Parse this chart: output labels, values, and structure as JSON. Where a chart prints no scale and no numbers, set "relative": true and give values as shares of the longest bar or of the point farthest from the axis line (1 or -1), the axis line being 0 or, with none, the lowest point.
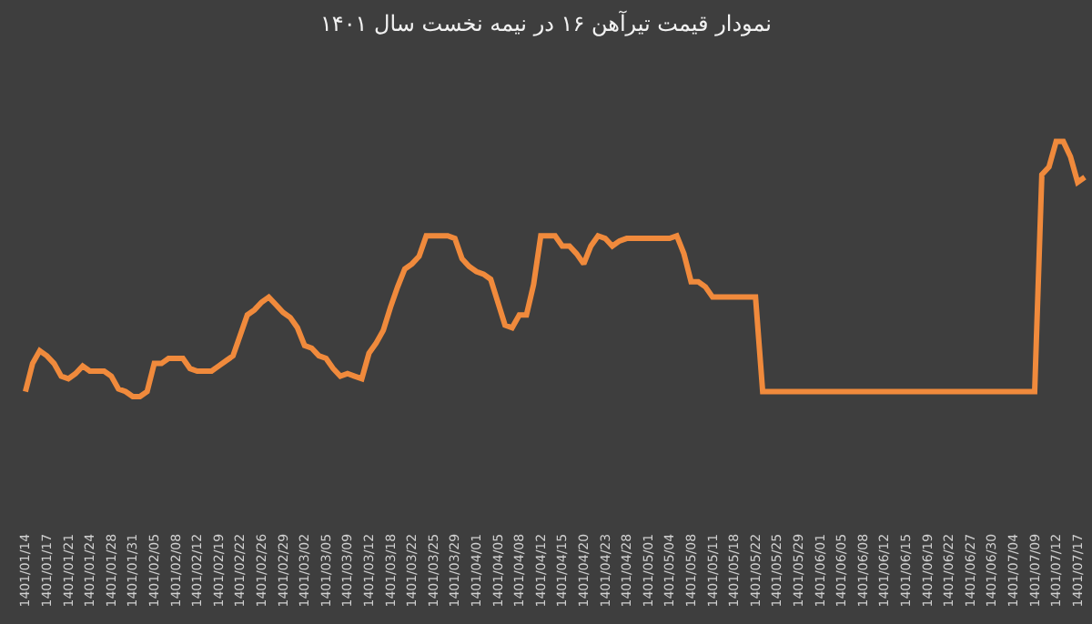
{
  "chart_data": {
    "type": "line",
    "title": "نمودار قیمت تیرآهن ۱۶ در نیمه نخست سال ۱۴۰۱",
    "relative": true,
    "marker": "none",
    "line_style": "solid",
    "categories": [
      "1401/01/14",
      null,
      null,
      "1401/01/17",
      null,
      null,
      "1401/01/21",
      null,
      null,
      "1401/01/24",
      null,
      null,
      "1401/01/28",
      null,
      null,
      "1401/01/31",
      null,
      null,
      "1401/02/05",
      null,
      null,
      "1401/02/08",
      null,
      null,
      "1401/02/12",
      null,
      null,
      "1401/02/19",
      null,
      null,
      "1401/02/22",
      null,
      null,
      "1401/02/26",
      null,
      null,
      "1401/02/29",
      null,
      null,
      "1401/03/02",
      null,
      null,
      "1401/03/05",
      null,
      null,
      "1401/03/09",
      null,
      null,
      "1401/03/12",
      null,
      null,
      "1401/03/18",
      null,
      null,
      "1401/03/22",
      null,
      null,
      "1401/03/25",
      null,
      null,
      "1401/03/29",
      null,
      null,
      "1401/04/01",
      null,
      null,
      "1401/04/05",
      null,
      null,
      "1401/04/08",
      null,
      null,
      "1401/04/12",
      null,
      null,
      "1401/04/15",
      null,
      null,
      "1401/04/20",
      null,
      null,
      "1401/04/23",
      null,
      null,
      "1401/04/28",
      null,
      null,
      "1401/05/01",
      null,
      null,
      "1401/05/04",
      null,
      null,
      "1401/05/08",
      null,
      null,
      "1401/05/11",
      null,
      null,
      "1401/05/18",
      null,
      null,
      "1401/05/22",
      null,
      null,
      "1401/05/25",
      null,
      null,
      "1401/05/29",
      null,
      null,
      "1401/06/01",
      null,
      null,
      "1401/06/05",
      null,
      null,
      "1401/06/08",
      null,
      null,
      "1401/06/12",
      null,
      null,
      "1401/06/15",
      null,
      null,
      "1401/06/19",
      null,
      null,
      "1401/06/22",
      null,
      null,
      "1401/06/27",
      null,
      null,
      "1401/06/30",
      null,
      null,
      "1401/07/04",
      null,
      null,
      "1401/07/09",
      null,
      null,
      "1401/07/12",
      null,
      null,
      "1401/07/17",
      null
    ],
    "series": [
      {
        "color": "#f08a3c",
        "values": [
          0.02,
          0.13,
          0.18,
          0.16,
          0.13,
          0.08,
          0.07,
          0.09,
          0.12,
          0.1,
          0.1,
          0.1,
          0.08,
          0.03,
          0.02,
          0,
          0,
          0.02,
          0.13,
          0.13,
          0.15,
          0.15,
          0.15,
          0.11,
          0.1,
          0.1,
          0.1,
          0.12,
          0.14,
          0.16,
          0.24,
          0.32,
          0.34,
          0.37,
          0.39,
          0.36,
          0.33,
          0.31,
          0.27,
          0.2,
          0.19,
          0.16,
          0.15,
          0.11,
          0.08,
          0.09,
          0.08,
          0.07,
          0.17,
          0.21,
          0.26,
          0.35,
          0.43,
          0.5,
          0.52,
          0.55,
          0.63,
          0.63,
          0.63,
          0.63,
          0.62,
          0.54,
          0.51,
          0.49,
          0.48,
          0.46,
          0.37,
          0.28,
          0.27,
          0.32,
          0.32,
          0.44,
          0.63,
          0.63,
          0.63,
          0.59,
          0.59,
          0.56,
          0.52,
          0.59,
          0.63,
          0.62,
          0.59,
          0.61,
          0.62,
          0.62,
          0.62,
          0.62,
          0.62,
          0.62,
          0.62,
          0.63,
          0.56,
          0.45,
          0.45,
          0.43,
          0.39,
          0.39,
          0.39,
          0.39,
          0.39,
          0.39,
          0.39,
          0.02,
          0.02,
          0.02,
          0.02,
          0.02,
          0.02,
          0.02,
          0.02,
          0.02,
          0.02,
          0.02,
          0.02,
          0.02,
          0.02,
          0.02,
          0.02,
          0.02,
          0.02,
          0.02,
          0.02,
          0.02,
          0.02,
          0.02,
          0.02,
          0.02,
          0.02,
          0.02,
          0.02,
          0.02,
          0.02,
          0.02,
          0.02,
          0.02,
          0.02,
          0.02,
          0.02,
          0.02,
          0.02,
          0.02,
          0.87,
          0.9,
          1,
          1,
          0.94,
          0.84,
          0.86
        ]
      }
    ]
  }
}
